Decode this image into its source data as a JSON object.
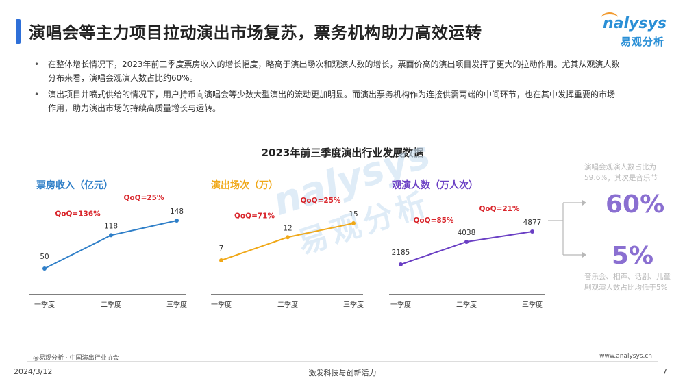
{
  "header": {
    "title": "演唱会等主力项目拉动演出市场复苏，票务机构助力高效运转",
    "logo_en": "nalysys",
    "logo_zh": "易观分析"
  },
  "bullets": [
    "在整体增长情况下，2023年前三季度票房收入的增长幅度，略高于演出场次和观演人数的增长，票面价高的演出项目发挥了更大的拉动作用。尤其从观演人数分布来看，演唱会观演人数占比约60%。",
    "演出项目井喷式供给的情况下，用户持币向演唱会等少数大型演出的流动更加明显。而演出票务机构作为连接供需两端的中间环节，也在其中发挥重要的市场作用，助力演出市场的持续高质量增长与运转。"
  ],
  "watermark": {
    "en": "nalysys",
    "zh": "易观分析"
  },
  "chart_title": "2023年前三季度演出行业发展数据",
  "chart_data": [
    {
      "type": "line",
      "title": "票房收入（亿元）",
      "color": "#2f7fc8",
      "categories": [
        "一季度",
        "二季度",
        "三季度"
      ],
      "values": [
        50,
        118,
        148
      ],
      "value_labels": [
        "50",
        "118",
        "148"
      ],
      "annotations": [
        {
          "between": [
            0,
            1
          ],
          "text": "QoQ=136%"
        },
        {
          "between": [
            1,
            2
          ],
          "text": "QoQ=25%"
        }
      ]
    },
    {
      "type": "line",
      "title": "演出场次（万）",
      "color": "#f0a818",
      "categories": [
        "一季度",
        "二季度",
        "三季度"
      ],
      "values": [
        7,
        12,
        15
      ],
      "value_labels": [
        "7",
        "12",
        "15"
      ],
      "annotations": [
        {
          "between": [
            0,
            1
          ],
          "text": "QoQ=71%"
        },
        {
          "between": [
            1,
            2
          ],
          "text": "QoQ=25%"
        }
      ]
    },
    {
      "type": "line",
      "title": "观演人数（万人次）",
      "color": "#6a3fc4",
      "categories": [
        "一季度",
        "二季度",
        "三季度"
      ],
      "values": [
        2185,
        4038,
        4877
      ],
      "value_labels": [
        "2185",
        "4038",
        "4877"
      ],
      "annotations": [
        {
          "between": [
            0,
            1
          ],
          "text": "QoQ=85%"
        },
        {
          "between": [
            1,
            2
          ],
          "text": "QoQ=21%"
        }
      ]
    }
  ],
  "side_panel": {
    "top_text": "演唱会观演人数占比为59.6%，其次是音乐节",
    "top_value": "60%",
    "bottom_value": "5%",
    "bottom_text": "音乐会、相声、话剧、儿童剧观演人数占比均低于5%"
  },
  "colors": {
    "qoq_red": "#d9262c",
    "accent_purple": "#8a6fd1",
    "title_bar": "#2e6fd8"
  },
  "footer": {
    "source": "@易观分析 · 中国演出行业协会",
    "url": "www.analysys.cn",
    "date": "2024/3/12",
    "center": "激发科技与创新活力",
    "page": "7"
  }
}
